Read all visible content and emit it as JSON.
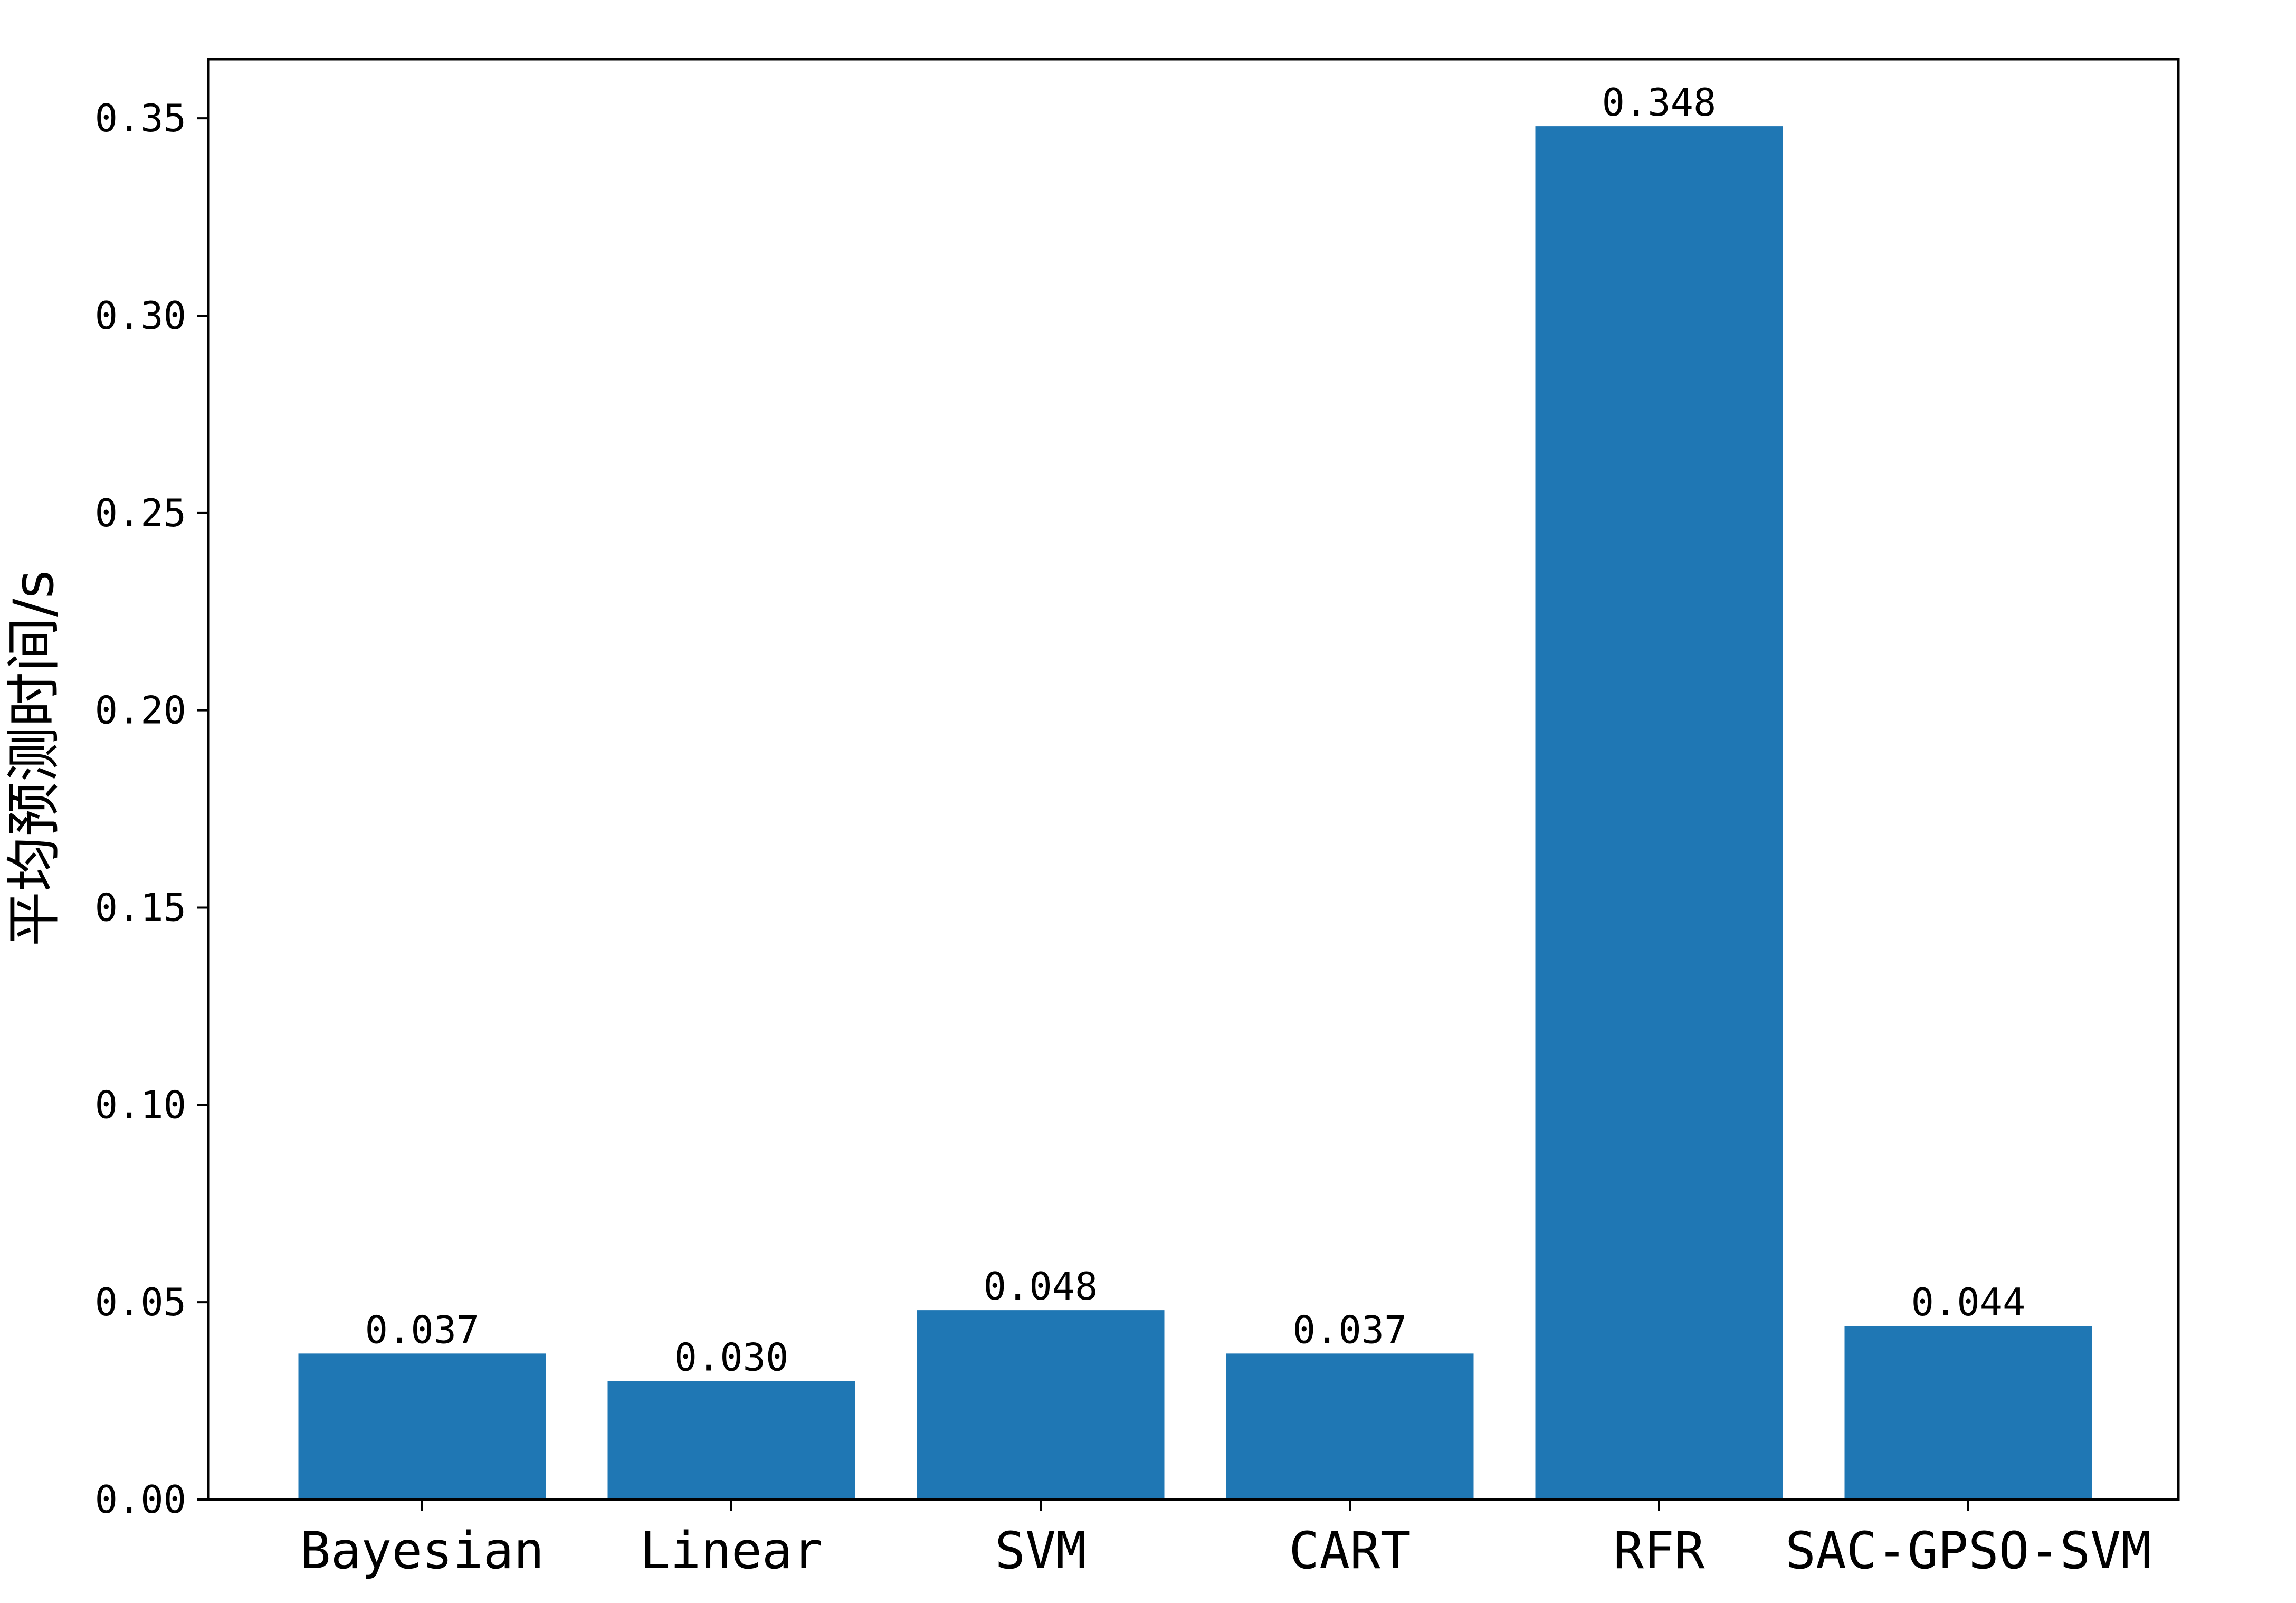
{
  "chart_data": {
    "type": "bar",
    "title": "",
    "xlabel": "",
    "ylabel": "平均预测时间/s",
    "categories": [
      "Bayesian",
      "Linear",
      "SVM",
      "CART",
      "RFR",
      "SAC-GPSO-SVM"
    ],
    "values": [
      0.037,
      0.03,
      0.048,
      0.037,
      0.348,
      0.044
    ],
    "data_labels": [
      "0.037",
      "0.030",
      "0.048",
      "0.037",
      "0.348",
      "0.044"
    ],
    "ylim": [
      0,
      0.365
    ],
    "yticks": [
      0.0,
      0.05,
      0.1,
      0.15,
      0.2,
      0.25,
      0.3,
      0.35
    ],
    "ytick_labels": [
      "0.00",
      "0.05",
      "0.10",
      "0.15",
      "0.20",
      "0.25",
      "0.30",
      "0.35"
    ],
    "grid": false,
    "bar_color": "#1f77b4"
  }
}
